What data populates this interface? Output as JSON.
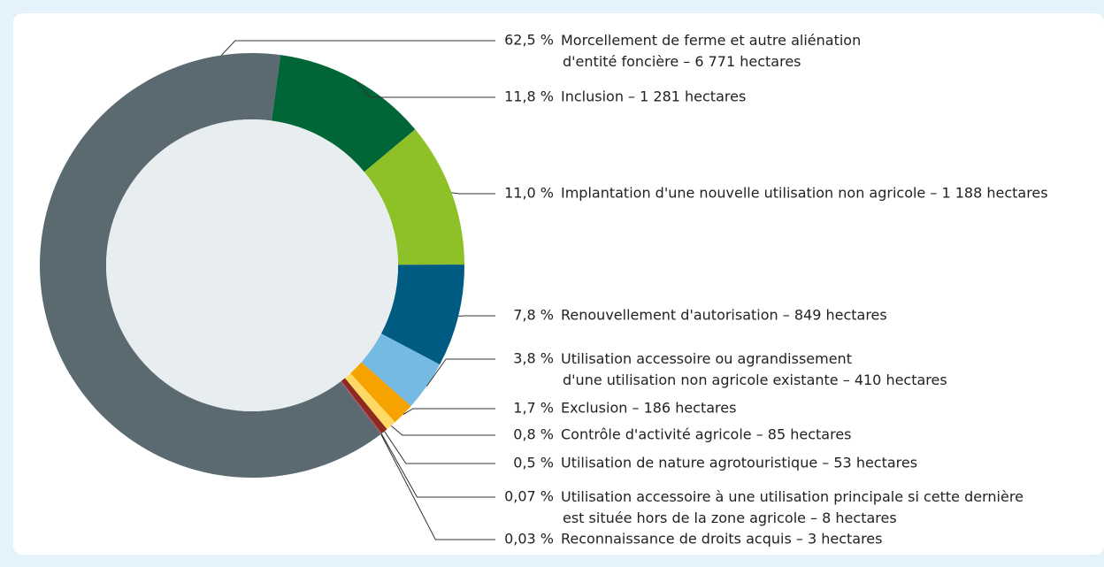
{
  "chart_data": {
    "type": "pie",
    "donut": true,
    "categories": [
      "Morcellement de ferme et autre aliénation\nd'entité foncière – 6 771 hectares",
      "Inclusion – 1 281 hectares",
      "Implantation d'une nouvelle utilisation non agricole – 1 188 hectares",
      "Renouvellement d'autorisation – 849 hectares",
      "Utilisation accessoire ou agrandissement\nd'une utilisation non agricole existante – 410 hectares",
      "Exclusion – 186 hectares",
      "Contrôle d'activité agricole – 85 hectares",
      "Utilisation de nature agrotouristique – 53 hectares",
      "Utilisation accessoire à une utilisation principale si cette dernière\nest située hors de la zone agricole – 8 hectares",
      "Reconnaissance de droits acquis – 3 hectares"
    ],
    "values": [
      62.5,
      11.8,
      11.0,
      7.8,
      3.8,
      1.7,
      0.8,
      0.5,
      0.07,
      0.03
    ],
    "value_labels": [
      "62,5 %",
      "11,8 %",
      "11,0 %",
      "7,8 %",
      "3,8 %",
      "1,7 %",
      "0,8 %",
      "0,5 %",
      "0,07 %",
      "0,03 %"
    ],
    "colors": [
      "#5b6a71",
      "#006638",
      "#8ec127",
      "#005b82",
      "#74bae2",
      "#f6a200",
      "#ffd966",
      "#8a2b1d",
      "#b5475e",
      "#6d2a5a"
    ]
  }
}
